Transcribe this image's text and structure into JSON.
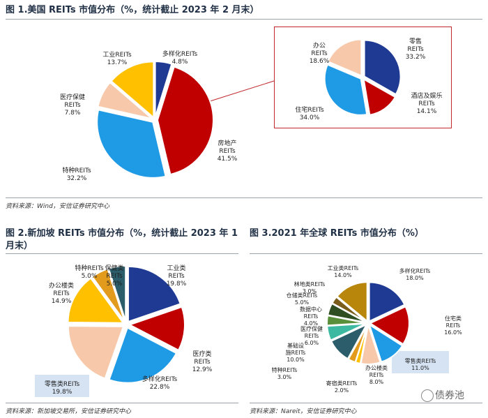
{
  "figures": {
    "fig1": {
      "title": "图 1.美国 REITs 市值分布（%，统计截止 2023 年 2 月末）",
      "source": "资料来源：Wind，安信证券研究中心"
    },
    "fig2": {
      "title_line1": "图 2.新加坡 REITs 市值分布（%，统计截止 2023 年 1",
      "title_line2": "月末）",
      "source": "资料来源：新加坡交易所，安信证券研究中心"
    },
    "fig3": {
      "title": "图 3.2021 年全球 REITs 市值分布（%）",
      "source": "资料来源：Nareit，安信证券研究中心"
    }
  },
  "watermark": {
    "text": "债券池",
    "icon": "wechat-icon"
  },
  "chart_data": [
    {
      "type": "pie",
      "id": "us_main",
      "slices": [
        {
          "label": "多样化REITs",
          "value": "4.8%",
          "v": 4.8,
          "color": "#1f3a93"
        },
        {
          "label": "房地产",
          "label2": "REITs",
          "value": "41.5%",
          "v": 41.5,
          "color": "#c00000"
        },
        {
          "label": "特种REITs",
          "value": "32.2%",
          "v": 32.2,
          "color": "#1f9be6"
        },
        {
          "label": "医疗保健",
          "label2": "REITs",
          "value": "7.8%",
          "v": 7.8,
          "color": "#f7c9aa"
        },
        {
          "label": "工业REITs",
          "value": "13.7%",
          "v": 13.7,
          "color": "#ffc000"
        }
      ]
    },
    {
      "type": "pie",
      "id": "us_realestate_breakdown",
      "slices": [
        {
          "label": "零售",
          "label2": "REITs",
          "value": "33.2%",
          "v": 33.2,
          "color": "#1f3a93"
        },
        {
          "label": "酒店及娱乐",
          "label2": "REITs",
          "value": "14.1%",
          "v": 14.1,
          "color": "#c00000"
        },
        {
          "label": "住宅REITs",
          "value": "34.0%",
          "v": 34.0,
          "color": "#1f9be6"
        },
        {
          "label": "办公",
          "label2": "REITs",
          "value": "18.6%",
          "v": 18.6,
          "color": "#f7c9aa"
        }
      ]
    },
    {
      "type": "pie",
      "id": "singapore",
      "slices": [
        {
          "label": "工业类",
          "label2": "REITs",
          "value": "19.8%",
          "v": 19.8,
          "color": "#1f3a93"
        },
        {
          "label": "医疗类",
          "label2": "REITs",
          "value": "12.9%",
          "v": 12.9,
          "color": "#c00000"
        },
        {
          "label": "多样化REITs",
          "value": "22.8%",
          "v": 22.8,
          "color": "#1f9be6"
        },
        {
          "label": "零售类REITs",
          "value": "19.8%",
          "v": 19.8,
          "color": "#f7c9aa"
        },
        {
          "label": "办公楼类",
          "label2": "REITs",
          "value": "14.9%",
          "v": 14.9,
          "color": "#ffc000"
        },
        {
          "label": "特种REITs",
          "value": "5.0%",
          "v": 5.0,
          "color": "#e39b1d"
        },
        {
          "label": "保健类",
          "label2": "REITs",
          "value": "5.0%",
          "v": 5.0,
          "color": "#2b5d6a"
        }
      ]
    },
    {
      "type": "pie",
      "id": "global_2021",
      "slices": [
        {
          "label": "多样化REITs",
          "value": "18.0%",
          "v": 18.0,
          "color": "#1f3a93"
        },
        {
          "label": "住宅类",
          "label2": "REITs",
          "value": "16.0%",
          "v": 16.0,
          "color": "#c00000"
        },
        {
          "label": "零售类REITs",
          "value": "11.0%",
          "v": 11.0,
          "color": "#1f9be6"
        },
        {
          "label": "办公楼类",
          "label2": "REITs",
          "value": "8.0%",
          "v": 8.0,
          "color": "#f7c9aa"
        },
        {
          "label": "寄宿类REITs",
          "value": "2.0%",
          "v": 2.0,
          "color": "#ffc000"
        },
        {
          "label": "特种REITs",
          "value": "3.0%",
          "v": 3.0,
          "color": "#e39b1d"
        },
        {
          "label": "基础设",
          "label2": "施REITs",
          "value": "10.0%",
          "v": 10.0,
          "color": "#2b5d6a"
        },
        {
          "label": "医疗保健",
          "label2": "REITs",
          "value": "6.0%",
          "v": 6.0,
          "color": "#3cb9a0"
        },
        {
          "label": "数据中心",
          "label2": "REITs",
          "value": "4.0%",
          "v": 4.0,
          "color": "#5a8f3a"
        },
        {
          "label": "仓储类REITs",
          "value": "5.0%",
          "v": 5.0,
          "color": "#2f4f23"
        },
        {
          "label": "林地类REITs",
          "value": "3.0%",
          "v": 3.0,
          "color": "#7a5c1b"
        },
        {
          "label": "工业类REITs",
          "value": "14.0%",
          "v": 14.0,
          "color": "#b8860b"
        }
      ]
    }
  ]
}
